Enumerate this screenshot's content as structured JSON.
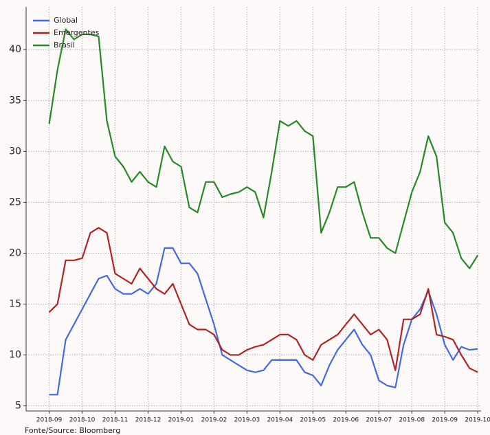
{
  "chart_data": {
    "type": "line",
    "x": [
      0,
      0.25,
      0.5,
      0.75,
      1,
      1.25,
      1.5,
      1.75,
      2,
      2.25,
      2.5,
      2.75,
      3,
      3.25,
      3.5,
      3.75,
      4,
      4.25,
      4.5,
      4.75,
      5,
      5.25,
      5.5,
      5.75,
      6,
      6.25,
      6.5,
      6.75,
      7,
      7.25,
      7.5,
      7.75,
      8,
      8.25,
      8.5,
      8.75,
      9,
      9.25,
      9.5,
      9.75,
      10,
      10.25,
      10.5,
      10.75,
      11,
      11.25,
      11.5,
      11.75,
      12,
      12.25,
      12.5,
      12.75,
      13
    ],
    "series": [
      {
        "name": "Global",
        "color": "#4169e1",
        "values": [
          6.1,
          6.1,
          11.5,
          13,
          14.5,
          16,
          17.5,
          17.8,
          16.5,
          16,
          16,
          16.5,
          16,
          17,
          20.5,
          20.5,
          19,
          19,
          18,
          15.5,
          13,
          10,
          9.5,
          9,
          8.5,
          8.3,
          8.5,
          9.5,
          9.5,
          9.5,
          9.5,
          8.3,
          8,
          7,
          9,
          10.5,
          11.5,
          12.5,
          11,
          10,
          7.5,
          7,
          6.8,
          11,
          13.5,
          14.5,
          16.3,
          14,
          11,
          9.5,
          10.8,
          10.5,
          10.6
        ]
      },
      {
        "name": "Emergentes",
        "color": "#b22222",
        "values": [
          14.2,
          15,
          19.3,
          19.3,
          19.5,
          22,
          22.5,
          22,
          18,
          17.5,
          17,
          18.5,
          17.5,
          16.5,
          16,
          17,
          15,
          13,
          12.5,
          12.5,
          12,
          10.5,
          10,
          10,
          10.5,
          10.8,
          11,
          11.5,
          12,
          12,
          11.5,
          10,
          9.5,
          11,
          11.5,
          12,
          13,
          14,
          13,
          12,
          12.5,
          11.5,
          8.5,
          13.5,
          13.5,
          14,
          16.5,
          12,
          11.8,
          11.5,
          10,
          8.7,
          8.3
        ]
      },
      {
        "name": "Brasil",
        "color": "#228b22",
        "values": [
          32.7,
          38,
          42,
          41,
          41.5,
          41.5,
          41.3,
          33,
          29.5,
          28.5,
          27,
          28,
          27,
          26.5,
          30.5,
          29,
          28.5,
          24.5,
          24,
          27,
          27,
          25.5,
          25.8,
          26,
          26.5,
          26,
          23.5,
          28,
          33,
          32.5,
          33,
          32,
          31.5,
          22,
          24,
          26.5,
          26.5,
          27,
          24,
          21.5,
          21.5,
          20.5,
          20,
          23,
          26,
          28,
          31.5,
          29.5,
          23,
          22,
          19.5,
          18.5,
          19.8
        ]
      }
    ],
    "xlim": [
      -0.7,
      13.1
    ],
    "xticks": [
      {
        "value": 0,
        "label": "2018-09"
      },
      {
        "value": 1,
        "label": "2018-10"
      },
      {
        "value": 2,
        "label": "2018-11"
      },
      {
        "value": 3,
        "label": "2018-12"
      },
      {
        "value": 4,
        "label": "2019-01"
      },
      {
        "value": 5,
        "label": "2019-02"
      },
      {
        "value": 6,
        "label": "2019-03"
      },
      {
        "value": 7,
        "label": "2019-04"
      },
      {
        "value": 8,
        "label": "2019-05"
      },
      {
        "value": 9,
        "label": "2019-06"
      },
      {
        "value": 10,
        "label": "2019-07"
      },
      {
        "value": 11,
        "label": "2019-08"
      },
      {
        "value": 12,
        "label": "2019-09"
      },
      {
        "value": 13,
        "label": "2019-10"
      }
    ],
    "ylim": [
      4.5,
      44.2
    ],
    "yticks": [
      5,
      10,
      15,
      20,
      25,
      30,
      35,
      40
    ],
    "grid": true,
    "legend": "upper left",
    "source": "Fonte/Source: Bloomberg"
  }
}
